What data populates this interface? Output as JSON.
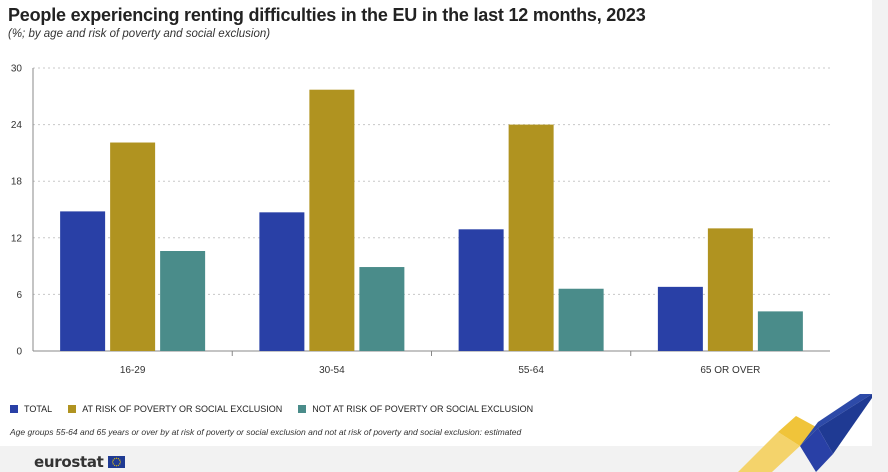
{
  "colors": {
    "total": "#2940a6",
    "at_risk": "#b09320",
    "not_at_risk": "#4a8c8a",
    "grid": "#c8c8c8",
    "axis": "#888888"
  },
  "chart_data": {
    "type": "bar",
    "title": "People experiencing renting difficulties in the EU in the last 12 months, 2023",
    "subtitle": "(%; by age and risk of poverty and social exclusion)",
    "xlabel": "",
    "ylabel": "",
    "ylim": [
      0,
      30
    ],
    "yticks": [
      0,
      6,
      12,
      18,
      24,
      30
    ],
    "categories": [
      "16-29",
      "30-54",
      "55-64",
      "65 OR OVER"
    ],
    "series": [
      {
        "key": "total",
        "name": "TOTAL",
        "values": [
          14.8,
          14.7,
          12.9,
          6.8
        ]
      },
      {
        "key": "at_risk",
        "name": "AT RISK OF POVERTY OR SOCIAL EXCLUSION",
        "values": [
          22.1,
          27.7,
          24.0,
          13.0
        ]
      },
      {
        "key": "not_at_risk",
        "name": "NOT AT RISK OF POVERTY OR SOCIAL EXCLUSION",
        "values": [
          10.6,
          8.9,
          6.6,
          4.2
        ]
      }
    ],
    "grid": true,
    "legend_position": "bottom-left"
  },
  "footnote": "Age groups 55-64 and 65 years or over by at risk of poverty or social exclusion and not at risk of poverty and social exclusion: estimated",
  "branding": {
    "logo_text": "eurostat"
  }
}
